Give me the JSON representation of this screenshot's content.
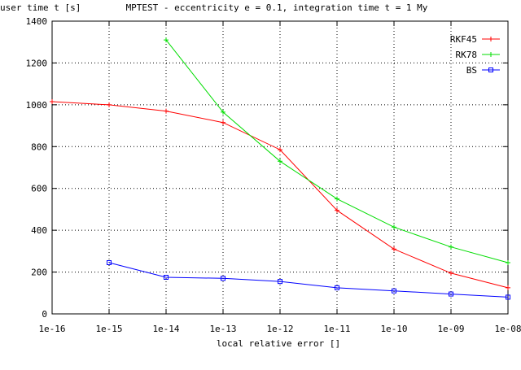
{
  "chart_data": {
    "type": "line",
    "title": "MPTEST - eccentricity e = 0.1, integration time t = 1 My",
    "xlabel": "local relative error []",
    "ylabel": "user time t [s]",
    "xscale": "log",
    "xlim": [
      "1e-16",
      "1e-08"
    ],
    "ylim": [
      0,
      1400
    ],
    "x_ticks": [
      "1e-16",
      "1e-15",
      "1e-14",
      "1e-13",
      "1e-12",
      "1e-11",
      "1e-10",
      "1e-09",
      "1e-08"
    ],
    "y_ticks": [
      "0",
      "200",
      "400",
      "600",
      "800",
      "1000",
      "1200",
      "1400"
    ],
    "grid": true,
    "legend_position": "top-right",
    "series": [
      {
        "name": "RKF45",
        "color": "#ff0000",
        "marker": "plus",
        "x": [
          "1e-16",
          "1e-15",
          "1e-14",
          "1e-13",
          "1e-12",
          "1e-11",
          "1e-10",
          "1e-09",
          "1e-08"
        ],
        "y": [
          1015,
          1000,
          970,
          915,
          785,
          495,
          310,
          195,
          125
        ]
      },
      {
        "name": "RK78",
        "color": "#00dd00",
        "marker": "plus",
        "x": [
          "1e-14",
          "1e-13",
          "1e-12",
          "1e-11",
          "1e-10",
          "1e-09",
          "1e-08"
        ],
        "y": [
          1310,
          965,
          730,
          550,
          415,
          320,
          245
        ]
      },
      {
        "name": "BS",
        "color": "#0000ff",
        "marker": "square",
        "x": [
          "1e-15",
          "1e-14",
          "1e-13",
          "1e-12",
          "1e-11",
          "1e-10",
          "1e-09",
          "1e-08"
        ],
        "y": [
          245,
          175,
          170,
          155,
          125,
          110,
          95,
          80
        ]
      }
    ]
  }
}
